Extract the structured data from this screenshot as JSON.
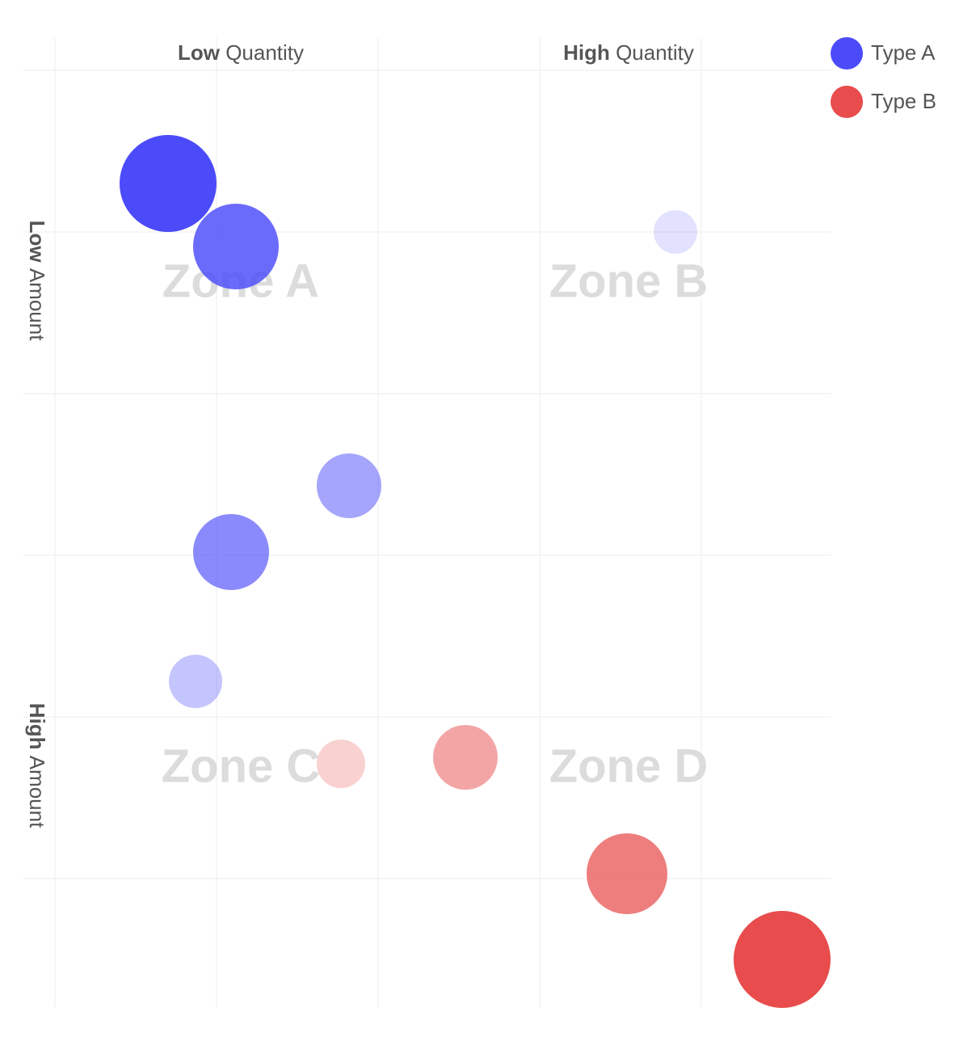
{
  "chart_data": {
    "type": "scatter",
    "xlim": [
      -0.2,
      4.8
    ],
    "ylim": [
      -0.2,
      5.8
    ],
    "xticks": [
      0,
      1,
      2,
      3,
      4
    ],
    "yticks": [
      0,
      1,
      2,
      3,
      4,
      5
    ],
    "grid": true,
    "y_inverted": true,
    "legend": "top-right",
    "x_labels": [
      {
        "bold": "Low",
        "text": "Quantity"
      },
      {
        "bold": "High",
        "text": "Quantity"
      }
    ],
    "y_labels": [
      {
        "bold": "Low",
        "text": "Amount"
      },
      {
        "bold": "High",
        "text": "Amount"
      }
    ],
    "zones": [
      "Zone A",
      "Zone B",
      "Zone C",
      "Zone D"
    ],
    "series": [
      {
        "name": "Type A",
        "color": "#4b4bfa",
        "x": [
          0.7,
          1.12,
          3.84,
          1.82,
          1.09,
          0.87
        ],
        "y": [
          0.7,
          1.09,
          1.0,
          2.57,
          2.98,
          3.78
        ],
        "sizes": [
          60,
          53,
          27,
          40,
          47,
          33
        ],
        "opacities": [
          1.0,
          0.82,
          0.16,
          0.5,
          0.65,
          0.32
        ]
      },
      {
        "name": "Type B",
        "color": "#e84c4c",
        "x": [
          1.77,
          2.54,
          3.54,
          4.5
        ],
        "y": [
          4.29,
          4.25,
          4.97,
          5.5
        ],
        "sizes": [
          30,
          40,
          50,
          60
        ],
        "opacities": [
          0.26,
          0.5,
          0.72,
          1.0
        ]
      }
    ]
  }
}
